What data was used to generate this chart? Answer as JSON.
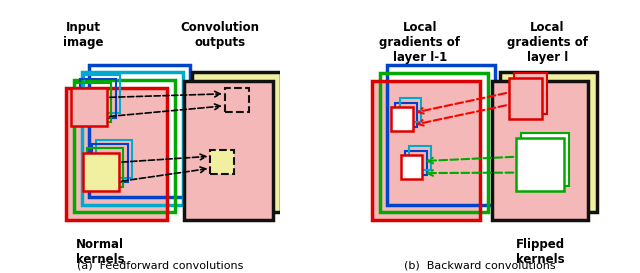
{
  "bg_color": "#d4d4d4",
  "white_bg": "#ffffff",
  "panel_a_title1": "Input\nimage",
  "panel_a_title2": "Convolution\noutputs",
  "panel_b_title1": "Local\ngradients of\nlayer l-1",
  "panel_b_title2": "Local\ngradients of\nlayer l",
  "caption_a": "(a)  Feedforward convolutions",
  "caption_b": "(b)  Backward convolutions",
  "normal_kernels": "Normal\nkernels",
  "flipped_kernels": "Flipped\nkernels",
  "pink": "#f5b8b8",
  "light_yellow": "#f0f0a0",
  "red": "#dd0000",
  "green": "#00aa00",
  "blue": "#0044cc",
  "cyan": "#00aacc",
  "black": "#111111",
  "lw_outer": 2.5,
  "lw_inner": 1.8
}
